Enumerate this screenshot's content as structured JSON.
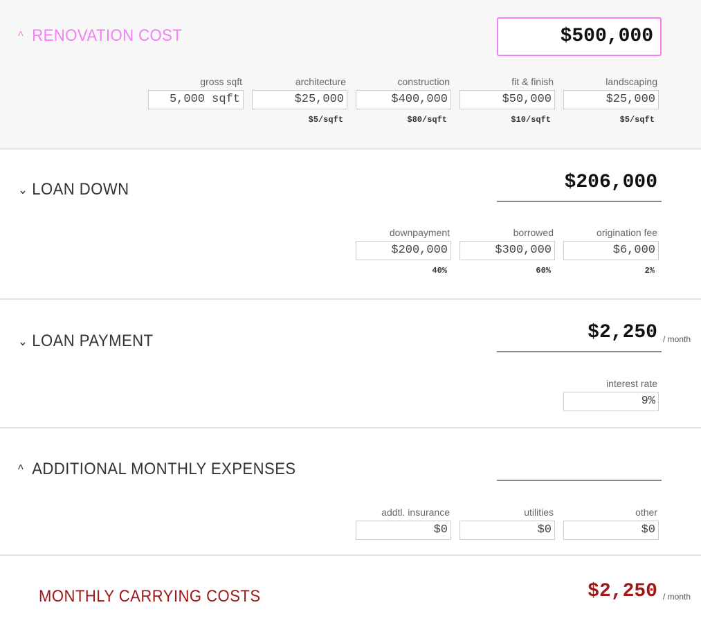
{
  "renovation": {
    "title": "RENOVATION COST",
    "total": "$500,000",
    "color": "#f57ef5",
    "fields": [
      {
        "label": "gross sqft",
        "value": "5,000 sqft",
        "sub": ""
      },
      {
        "label": "architecture",
        "value": "$25,000",
        "sub": "$5/sqft"
      },
      {
        "label": "construction",
        "value": "$400,000",
        "sub": "$80/sqft"
      },
      {
        "label": "fit & finish",
        "value": "$50,000",
        "sub": "$10/sqft"
      },
      {
        "label": "landscaping",
        "value": "$25,000",
        "sub": "$5/sqft"
      }
    ]
  },
  "loan_down": {
    "title": "LOAN DOWN",
    "total": "$206,000",
    "fields": [
      {
        "label": "downpayment",
        "value": "$200,000",
        "sub": "40%"
      },
      {
        "label": "borrowed",
        "value": "$300,000",
        "sub": "60%"
      },
      {
        "label": "origination fee",
        "value": "$6,000",
        "sub": "2%"
      }
    ]
  },
  "loan_payment": {
    "title": "LOAN PAYMENT",
    "total": "$2,250",
    "per": "/ month",
    "fields": [
      {
        "label": "interest rate",
        "value": "9%"
      }
    ]
  },
  "additional": {
    "title": "ADDITIONAL MONTHLY EXPENSES",
    "total": "",
    "fields": [
      {
        "label": "addtl. insurance",
        "value": "$0"
      },
      {
        "label": "utilities",
        "value": "$0"
      },
      {
        "label": "other",
        "value": "$0"
      }
    ]
  },
  "carrying": {
    "title": "MONTHLY CARRYING COSTS",
    "total": "$2,250",
    "per": "/ month",
    "color": "#a01818"
  }
}
